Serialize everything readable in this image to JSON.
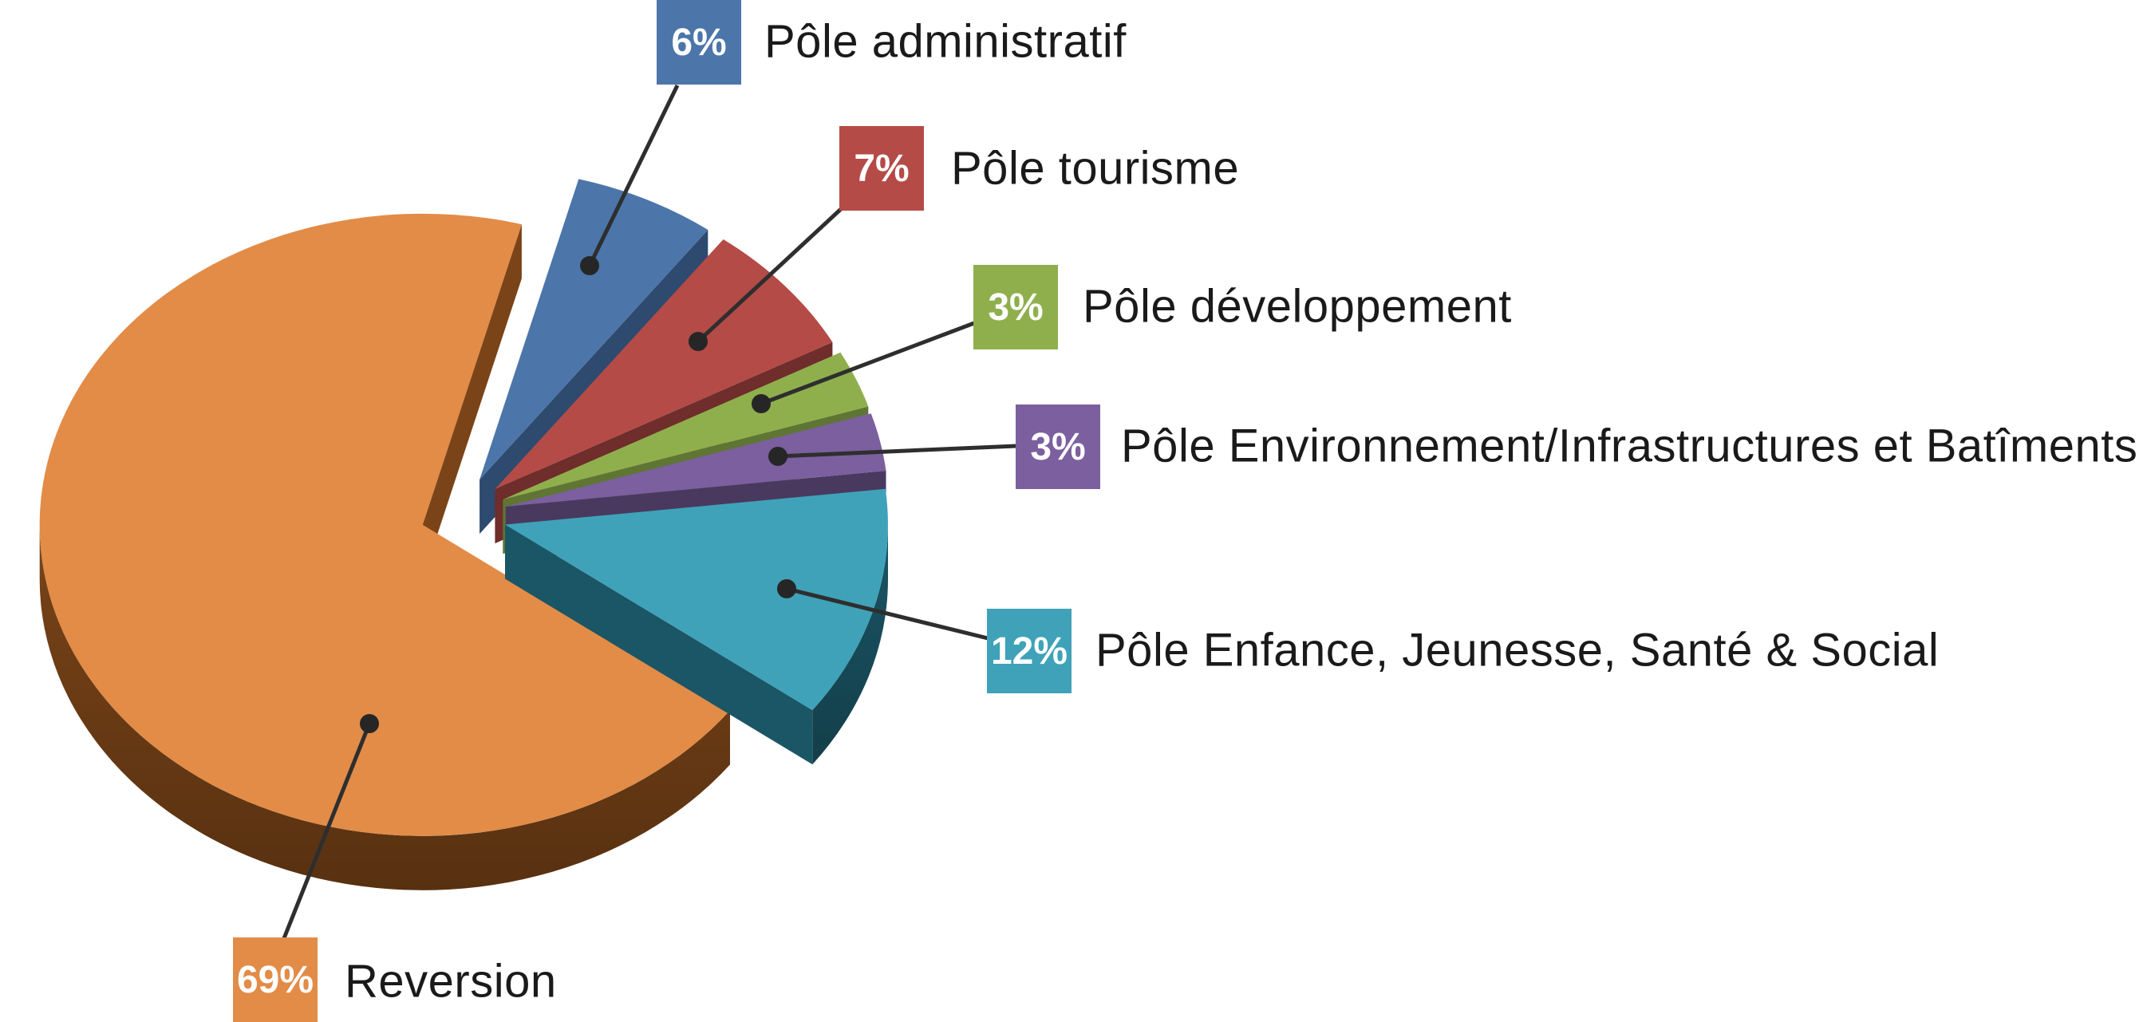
{
  "chart_data": {
    "type": "pie",
    "style": "3d-exploded-pie",
    "background": "#ffffff",
    "legend_position": "right-callouts",
    "leader_line_color": "#2e2e2e",
    "dot_color": "#262626",
    "label_text_color": "#1a1a1a",
    "badge_text_color": "#ffffff",
    "slices": [
      {
        "label": "Pôle administratif",
        "value_pct": 6,
        "badge_text": "6%",
        "color": "#4C76A9",
        "side_color": "#2E4A6E"
      },
      {
        "label": "Pôle tourisme",
        "value_pct": 7,
        "badge_text": "7%",
        "color": "#B44B47",
        "side_color": "#6F2D2B"
      },
      {
        "label": "Pôle développement",
        "value_pct": 3,
        "badge_text": "3%",
        "color": "#8FAF4D",
        "side_color": "#5F7534"
      },
      {
        "label": "Pôle Environnement/Infrastructures et Batîments",
        "value_pct": 3,
        "badge_text": "3%",
        "color": "#7B5F9F",
        "side_color": "#49395F"
      },
      {
        "label": "Pôle Enfance, Jeunesse, Santé & Social",
        "value_pct": 12,
        "badge_text": "12%",
        "color": "#3FA2B8",
        "side_color": "#1B5666"
      },
      {
        "label": "Reversion",
        "value_pct": 69,
        "badge_text": "69%",
        "color": "#E28C48",
        "side_color": "#7A4418"
      }
    ]
  }
}
